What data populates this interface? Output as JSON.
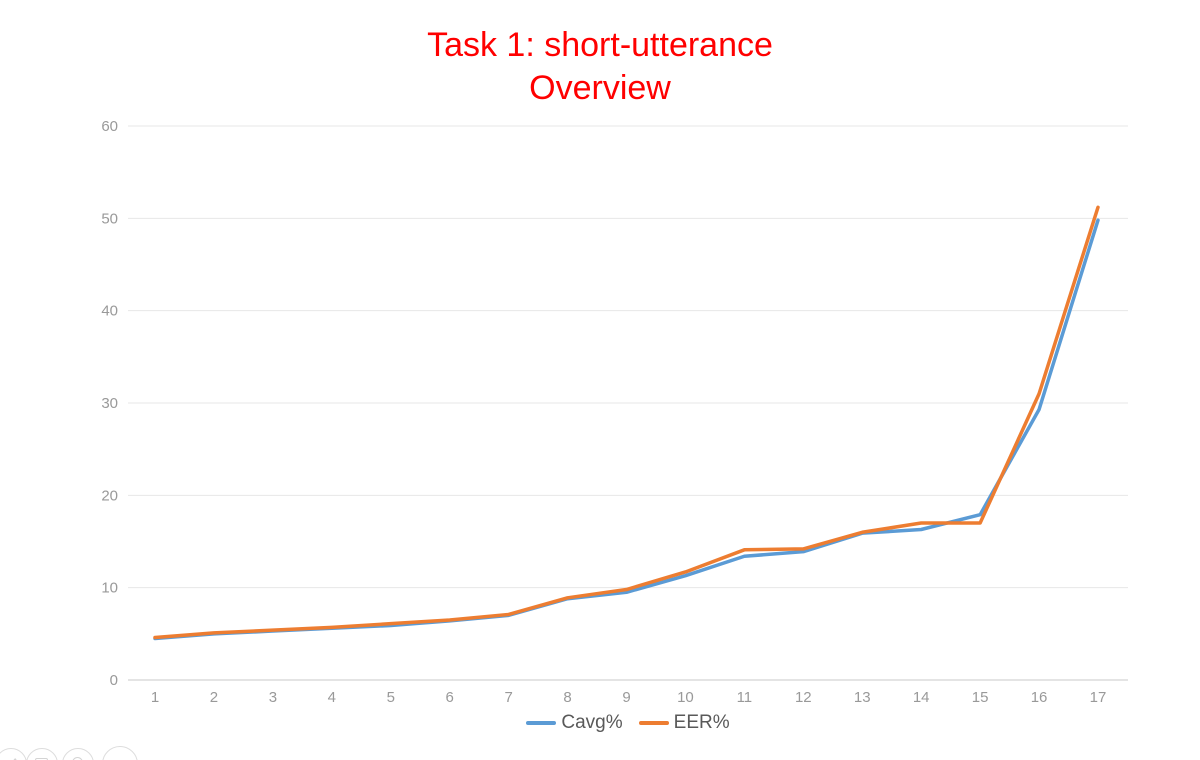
{
  "title": {
    "line1": "Task 1: short-utterance",
    "line2": "Overview",
    "color": "#FF0000"
  },
  "chart_data": {
    "type": "line",
    "title": "Task 1: short-utterance Overview",
    "x": [
      1,
      2,
      3,
      4,
      5,
      6,
      7,
      8,
      9,
      10,
      11,
      12,
      13,
      14,
      15,
      16,
      17
    ],
    "xlabel": "",
    "ylabel": "",
    "ylim": [
      0,
      60
    ],
    "yticks": [
      0,
      10,
      20,
      30,
      40,
      50,
      60
    ],
    "grid": true,
    "legend_position": "bottom",
    "series": [
      {
        "name": "Cavg%",
        "color": "#5B9BD5",
        "values": [
          4.5,
          5.0,
          5.3,
          5.6,
          5.9,
          6.4,
          7.0,
          8.8,
          9.5,
          11.3,
          13.4,
          13.9,
          15.9,
          16.3,
          17.9,
          29.3,
          49.8
        ]
      },
      {
        "name": "EER%",
        "color": "#ED7D31",
        "values": [
          4.6,
          5.1,
          5.4,
          5.7,
          6.1,
          6.5,
          7.1,
          8.9,
          9.8,
          11.7,
          14.1,
          14.2,
          16.0,
          17.0,
          17.0,
          31.0,
          51.2
        ]
      }
    ]
  },
  "colors": {
    "background": "#FFFFFF",
    "axis_text": "#999999",
    "gridline": "#E7E7E7",
    "axis_line": "#C9C9C9",
    "legend_text": "#595959"
  },
  "corner_toolbar": {
    "buttons": [
      {
        "icon": "pencil"
      },
      {
        "icon": "image"
      },
      {
        "icon": "circle"
      },
      {
        "icon": "blank"
      }
    ]
  }
}
